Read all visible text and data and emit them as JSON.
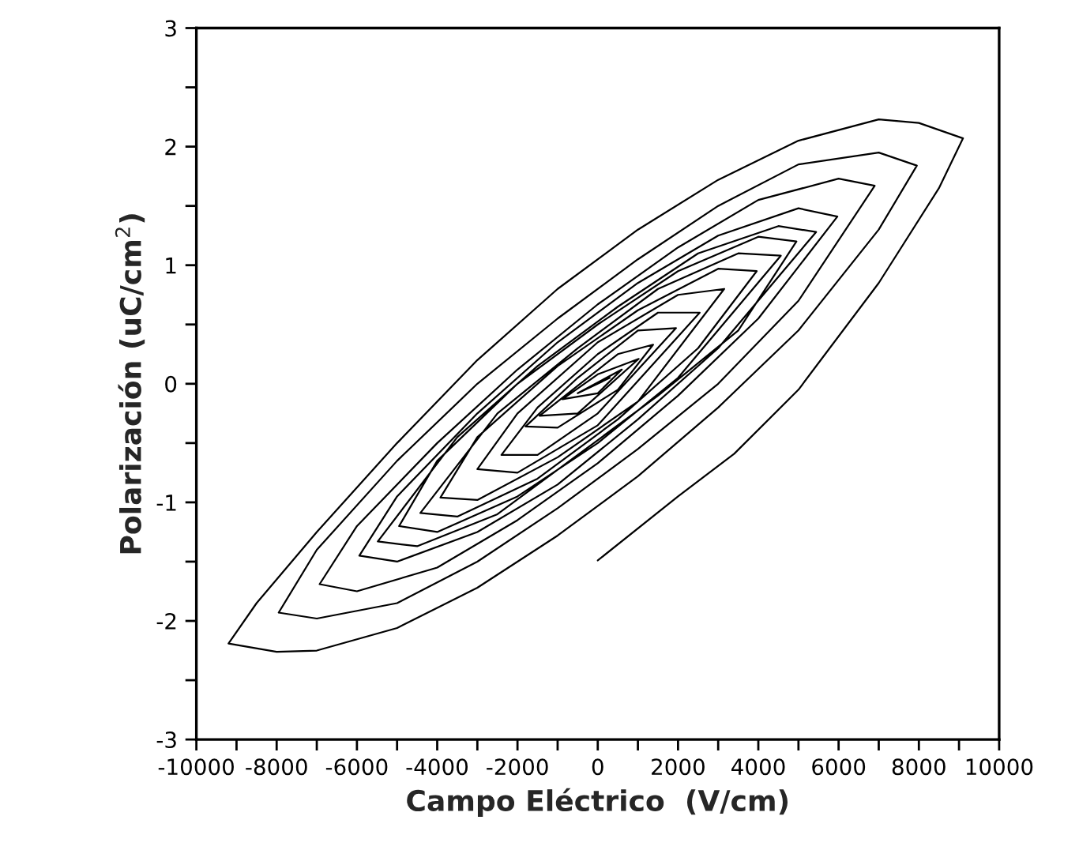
{
  "chart_data": {
    "type": "line",
    "xlabel": "Campo Eléctrico  (V/cm)",
    "ylabel": "Polarización (uC/cm$^{2}$)",
    "xlim": [
      -10000,
      10000
    ],
    "ylim": [
      -3,
      3
    ],
    "xticks": [
      -10000,
      {
        "value": -9000,
        "label": null
      },
      -8000,
      {
        "value": -7000,
        "label": null
      },
      -6000,
      {
        "value": -5000,
        "label": null
      },
      -4000,
      {
        "value": -3000,
        "label": null
      },
      -2000,
      {
        "value": -1000,
        "label": null
      },
      0,
      {
        "value": 1000,
        "label": null
      },
      2000,
      {
        "value": 3000,
        "label": null
      },
      4000,
      {
        "value": 5000,
        "label": null
      },
      6000,
      {
        "value": 7000,
        "label": null
      },
      8000,
      {
        "value": 9000,
        "label": null
      },
      10000
    ],
    "yticks": [
      -3,
      {
        "value": -2.5,
        "label": null
      },
      -2,
      {
        "value": -1.5,
        "label": null
      },
      -1,
      {
        "value": -0.5,
        "label": null
      },
      0,
      {
        "value": 0.5,
        "label": null
      },
      1,
      {
        "value": 1.5,
        "label": null
      },
      2,
      {
        "value": 2.5,
        "label": null
      },
      3
    ],
    "grid": false,
    "legend": false,
    "marker": "none",
    "line_style": "solid",
    "series": [
      {
        "color": "#000000",
        "x": [
          0,
          2000,
          3400,
          5000,
          7000,
          8500,
          9100,
          8000,
          7000,
          5000,
          3000,
          1000,
          -1000,
          -3000,
          -5000,
          -7000,
          -8500,
          -9200,
          -8000,
          -7000,
          -5000,
          -3000,
          -1000,
          1000,
          3000,
          5000,
          7000,
          7950,
          7000,
          5000,
          3000,
          1000,
          -1000,
          -3000,
          -5000,
          -7000,
          -7950,
          -7000,
          -5000,
          -3000,
          -1000,
          1000,
          3000,
          5000,
          6900,
          6000,
          4000,
          2000,
          0,
          -2000,
          -4000,
          -6000,
          -6930,
          -6000,
          -4000,
          -2000,
          0,
          2000,
          4000,
          5970,
          5000,
          3000,
          1000,
          -1000,
          -3000,
          -5000,
          -5940,
          -5000,
          -3000,
          -1000,
          1000,
          3000,
          5440,
          4500,
          2500,
          500,
          -1500,
          -3500,
          -5480,
          -4500,
          -2500,
          -500,
          1500,
          3500,
          4950,
          4000,
          2000,
          0,
          -2000,
          -4000,
          -4950,
          -4000,
          -2000,
          0,
          2000,
          4560,
          3500,
          1500,
          -500,
          -2500,
          -4420,
          -3500,
          -1500,
          500,
          2500,
          3960,
          3000,
          1000,
          -1000,
          -3000,
          -3920,
          -3000,
          -1000,
          1000,
          3150,
          2000,
          0,
          -2000,
          -3000,
          -2000,
          0,
          2540,
          1500,
          0,
          -1500,
          -2400,
          -1500,
          0,
          1950,
          1000,
          -500,
          -1800,
          -1000,
          500,
          1380,
          500,
          -1450,
          -500,
          1020,
          0,
          -880,
          0,
          600,
          -500,
          300,
          -200
        ],
        "values": [
          -1.49,
          -0.95,
          -0.59,
          -0.05,
          0.85,
          1.65,
          2.07,
          2.2,
          2.23,
          2.05,
          1.72,
          1.3,
          0.8,
          0.2,
          -0.5,
          -1.25,
          -1.85,
          -2.19,
          -2.26,
          -2.25,
          -2.06,
          -1.72,
          -1.28,
          -0.78,
          -0.2,
          0.45,
          1.3,
          1.84,
          1.95,
          1.85,
          1.5,
          1.05,
          0.55,
          0.0,
          -0.65,
          -1.4,
          -1.93,
          -1.98,
          -1.85,
          -1.5,
          -1.05,
          -0.55,
          0.0,
          0.7,
          1.67,
          1.73,
          1.55,
          1.15,
          0.67,
          0.12,
          -0.5,
          -1.2,
          -1.69,
          -1.75,
          -1.55,
          -1.15,
          -0.67,
          -0.1,
          0.55,
          1.41,
          1.48,
          1.25,
          0.85,
          0.35,
          -0.25,
          -0.95,
          -1.45,
          -1.5,
          -1.25,
          -0.85,
          -0.3,
          0.3,
          1.28,
          1.33,
          1.1,
          0.65,
          0.15,
          -0.45,
          -1.33,
          -1.37,
          -1.1,
          -0.6,
          -0.1,
          0.45,
          1.2,
          1.24,
          0.95,
          0.5,
          0.0,
          -0.65,
          -1.2,
          -1.25,
          -0.95,
          -0.5,
          0.05,
          1.08,
          1.1,
          0.8,
          0.3,
          -0.25,
          -1.09,
          -1.12,
          -0.8,
          -0.3,
          0.3,
          0.95,
          0.97,
          0.62,
          0.15,
          -0.45,
          -0.96,
          -0.98,
          -0.62,
          -0.15,
          0.8,
          0.75,
          0.35,
          -0.25,
          -0.72,
          -0.75,
          -0.35,
          0.6,
          0.6,
          0.25,
          -0.2,
          -0.6,
          -0.6,
          -0.25,
          0.47,
          0.45,
          0.05,
          -0.36,
          -0.37,
          -0.05,
          0.33,
          0.25,
          -0.27,
          -0.25,
          0.21,
          0.08,
          -0.13,
          -0.08,
          0.12,
          -0.08,
          0.05,
          -0.03
        ]
      }
    ]
  }
}
